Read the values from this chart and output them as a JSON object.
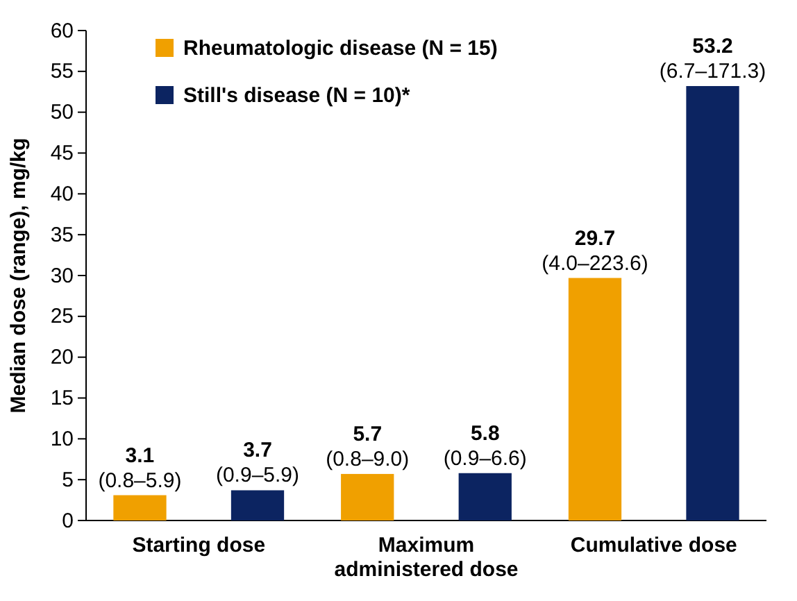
{
  "chart_data": {
    "type": "bar",
    "ylabel": "Median dose (range), mg/kg",
    "categories": [
      "Starting dose",
      "Maximum administered dose",
      "Cumulative dose"
    ],
    "series": [
      {
        "name": "Rheumatologic disease (N = 15)",
        "color": "#f0a000",
        "values": [
          3.1,
          5.7,
          29.7
        ],
        "value_labels": [
          "3.1\n(0.8–5.9)",
          "5.7\n(0.8–9.0)",
          "29.7\n(4.0–223.6)"
        ]
      },
      {
        "name": "Still's disease (N = 10)*",
        "color": "#0c2461",
        "values": [
          3.7,
          5.8,
          53.2
        ],
        "value_labels": [
          "3.7\n(0.9–5.9)",
          "5.8\n(0.9–6.6)",
          "53.2\n(6.7–171.3)"
        ]
      }
    ],
    "ylim": [
      0,
      60
    ],
    "yticks": [
      0,
      5,
      10,
      15,
      20,
      25,
      30,
      35,
      40,
      45,
      50,
      55,
      60
    ],
    "grid": false,
    "legend": "top left"
  }
}
